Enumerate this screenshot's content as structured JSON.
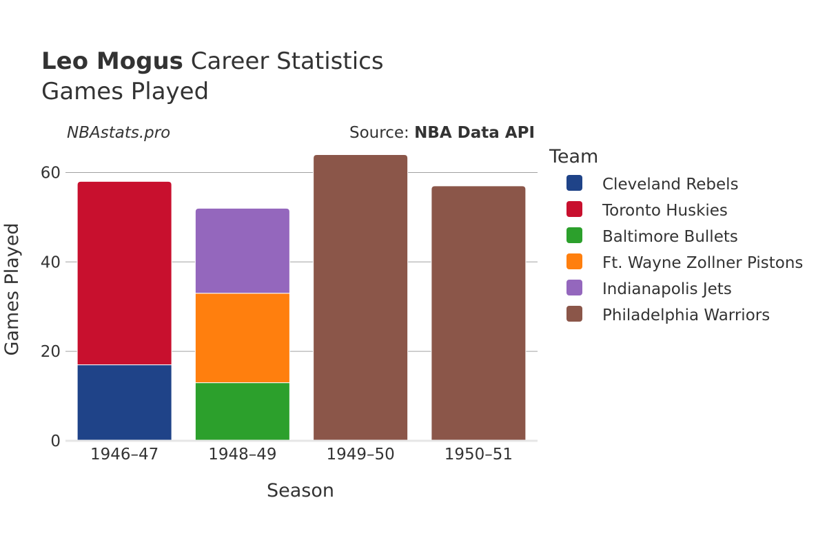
{
  "header": {
    "title_bold": "Leo Mogus",
    "title_rest": " Career Statistics",
    "subtitle": "Games Played",
    "watermark": "NBAstats.pro",
    "source_prefix": "Source: ",
    "source_name": "NBA Data API"
  },
  "legend": {
    "title": "Team"
  },
  "chart_data": {
    "type": "bar",
    "stacked": true,
    "title": "Leo Mogus Career Statistics",
    "subtitle": "Games Played",
    "xlabel": "Season",
    "ylabel": "Games Played",
    "categories": [
      "1946–47",
      "1948–49",
      "1949–50",
      "1950–51"
    ],
    "ylim": [
      0,
      67
    ],
    "yticks": [
      0,
      20,
      40,
      60
    ],
    "grid": true,
    "legend_position": "right",
    "series": [
      {
        "name": "Cleveland Rebels",
        "color": "#1f4388",
        "values": [
          17,
          0,
          0,
          0
        ]
      },
      {
        "name": "Toronto Huskies",
        "color": "#c8102e",
        "values": [
          41,
          0,
          0,
          0
        ]
      },
      {
        "name": "Baltimore Bullets",
        "color": "#2ca02c",
        "values": [
          0,
          13,
          0,
          0
        ]
      },
      {
        "name": "Ft. Wayne Zollner Pistons",
        "color": "#ff7f0e",
        "values": [
          0,
          20,
          0,
          0
        ]
      },
      {
        "name": "Indianapolis Jets",
        "color": "#9467bd",
        "values": [
          0,
          19,
          0,
          0
        ]
      },
      {
        "name": "Philadelphia Warriors",
        "color": "#8b5649",
        "values": [
          0,
          0,
          64,
          57
        ]
      }
    ]
  }
}
